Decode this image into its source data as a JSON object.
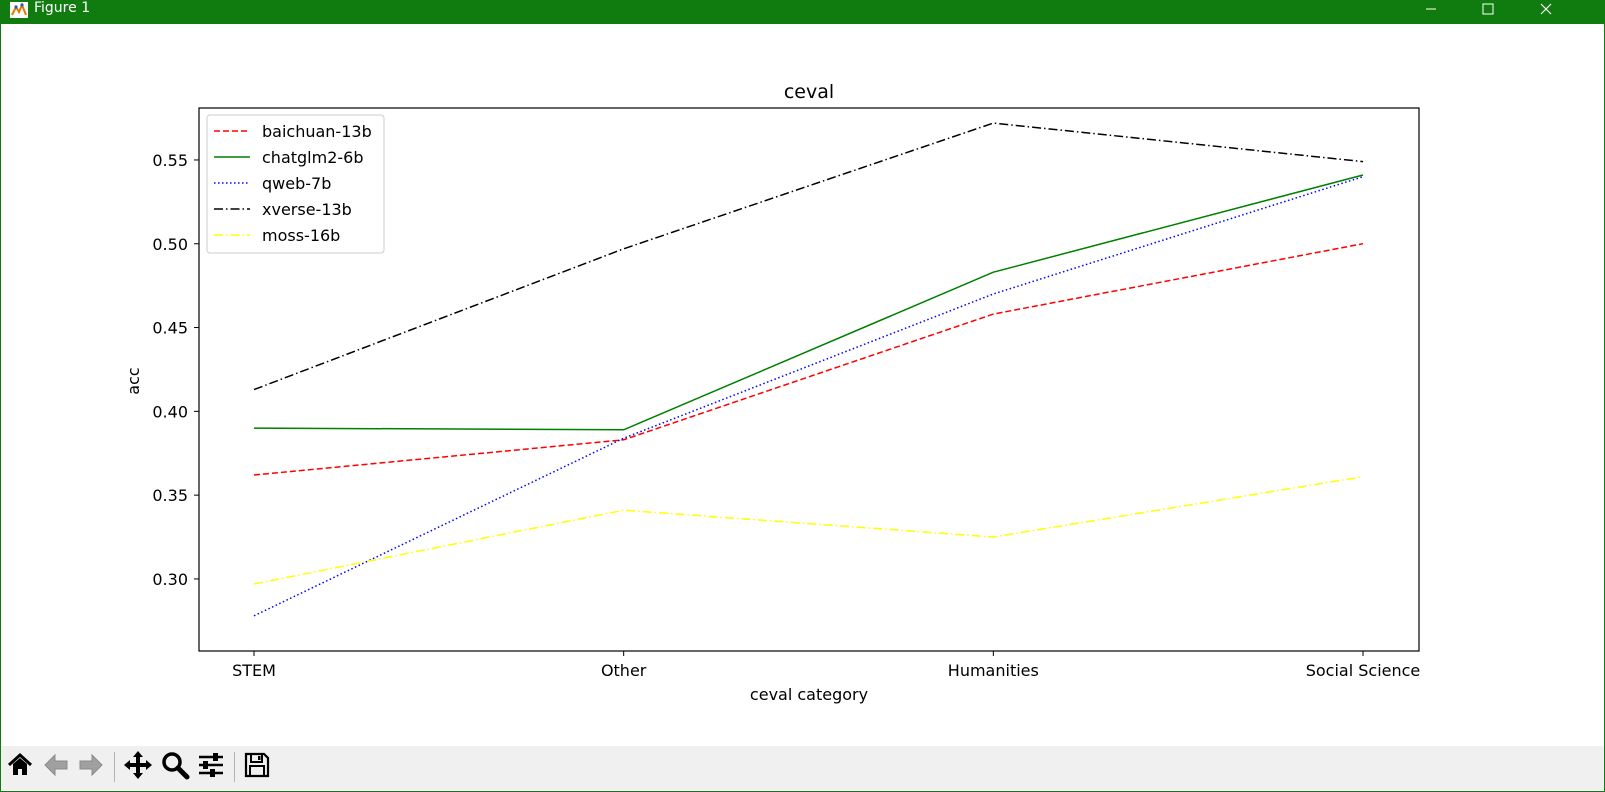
{
  "window": {
    "title": "Figure 1",
    "titlebar_color": "#107c10",
    "icons": [
      "app-icon",
      "minimize-icon",
      "maximize-icon",
      "close-icon"
    ]
  },
  "toolbar": {
    "buttons": [
      {
        "name": "home-button",
        "icon": "home-icon"
      },
      {
        "name": "back-button",
        "icon": "arrow-left-icon"
      },
      {
        "name": "forward-button",
        "icon": "arrow-right-icon"
      },
      {
        "name": "pan-button",
        "icon": "move-icon"
      },
      {
        "name": "zoom-button",
        "icon": "magnifier-icon"
      },
      {
        "name": "configure-subplots-button",
        "icon": "sliders-icon"
      },
      {
        "name": "save-button",
        "icon": "floppy-disk-icon"
      }
    ]
  },
  "chart_data": {
    "type": "line",
    "title": "ceval",
    "xlabel": "ceval category",
    "ylabel": "acc",
    "categories": [
      "STEM",
      "Other",
      "Humanities",
      "Social Science"
    ],
    "ylim": [
      0.257,
      0.581
    ],
    "yticks": [
      0.3,
      0.35,
      0.4,
      0.45,
      0.5,
      0.55
    ],
    "ytick_labels": [
      "0.30",
      "0.35",
      "0.40",
      "0.45",
      "0.50",
      "0.55"
    ],
    "grid": false,
    "legend_position": "upper-left",
    "series": [
      {
        "name": "baichuan-13b",
        "values": [
          0.362,
          0.383,
          0.458,
          0.5
        ],
        "color": "#ff0000",
        "dash": "dashed"
      },
      {
        "name": "chatglm2-6b",
        "values": [
          0.39,
          0.389,
          0.483,
          0.541
        ],
        "color": "#008000",
        "dash": "solid"
      },
      {
        "name": "qweb-7b",
        "values": [
          0.278,
          0.384,
          0.47,
          0.54
        ],
        "color": "#0000ff",
        "dash": "dotted"
      },
      {
        "name": "xverse-13b",
        "values": [
          0.413,
          0.497,
          0.572,
          0.549
        ],
        "color": "#000000",
        "dash": "dashdot"
      },
      {
        "name": "moss-16b",
        "values": [
          0.297,
          0.341,
          0.325,
          0.361
        ],
        "color": "#ffff00",
        "dash": "dashdot"
      }
    ]
  }
}
